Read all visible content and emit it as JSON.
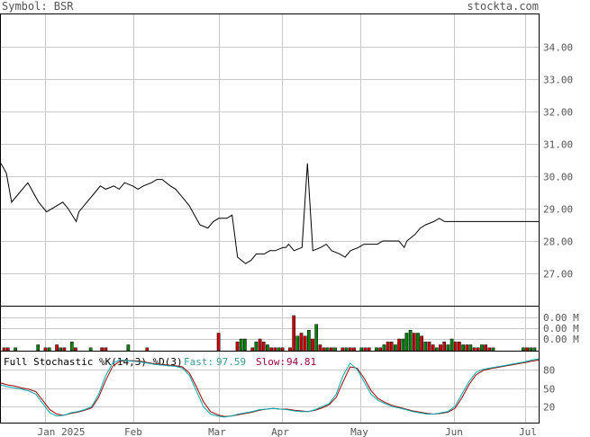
{
  "header": {
    "symbol_label": "Symbol: BSR",
    "site": "stockta.com"
  },
  "colors": {
    "frame": "#000000",
    "grid": "#c8c8c8",
    "price_line": "#000000",
    "volume_up": "#008000",
    "volume_down": "#cc0000",
    "fast_line": "#00aaaa",
    "slow_line": "#990000",
    "fast_label": "#3a9a9a",
    "slow_label": "#990044",
    "text": "#555555"
  },
  "chart_data": [
    {
      "type": "line",
      "panel": "price",
      "x_tick_labels": [
        "Jan 2025",
        "Feb",
        "Mar",
        "Apr",
        "May",
        "Jun",
        "Jul"
      ],
      "y_tick_labels": [
        "27.00",
        "28.00",
        "29.00",
        "30.00",
        "31.00",
        "32.00",
        "33.00",
        "34.00"
      ],
      "y_ticks": [
        27,
        28,
        29,
        30,
        31,
        32,
        33,
        34
      ],
      "ylim": [
        26,
        35
      ],
      "grid": true,
      "series": [
        {
          "x": [
            "2024-12-16",
            "2024-12-18",
            "2024-12-20",
            "2024-12-23",
            "2024-12-26",
            "2024-12-30",
            "2025-01-02",
            "2025-01-06",
            "2025-01-08",
            "2025-01-10",
            "2025-01-13",
            "2025-01-14",
            "2025-01-16",
            "2025-01-20",
            "2025-01-22",
            "2025-01-24",
            "2025-01-27",
            "2025-01-29",
            "2025-01-31",
            "2025-02-03",
            "2025-02-05",
            "2025-02-07",
            "2025-02-10",
            "2025-02-12",
            "2025-02-14",
            "2025-02-17",
            "2025-02-19",
            "2025-02-21",
            "2025-02-24",
            "2025-02-26",
            "2025-02-28",
            "2025-03-03",
            "2025-03-05",
            "2025-03-07",
            "2025-03-10",
            "2025-03-12",
            "2025-03-14",
            "2025-03-17",
            "2025-03-19",
            "2025-03-21",
            "2025-03-24",
            "2025-03-26",
            "2025-03-28",
            "2025-03-31",
            "2025-04-01",
            "2025-04-02",
            "2025-04-03",
            "2025-04-04",
            "2025-04-07",
            "2025-04-09",
            "2025-04-11",
            "2025-04-14",
            "2025-04-16",
            "2025-04-18",
            "2025-04-21",
            "2025-04-23",
            "2025-04-25",
            "2025-04-28",
            "2025-04-30",
            "2025-05-02",
            "2025-05-05",
            "2025-05-07",
            "2025-05-09",
            "2025-05-12",
            "2025-05-13",
            "2025-05-14",
            "2025-05-15",
            "2025-05-16",
            "2025-05-19",
            "2025-05-21",
            "2025-05-23",
            "2025-05-26",
            "2025-05-28",
            "2025-05-30",
            "2025-06-02",
            "2025-06-04",
            "2025-06-06",
            "2025-06-09",
            "2025-06-11",
            "2025-06-13",
            "2025-06-16",
            "2025-06-18",
            "2025-06-20",
            "2025-06-23",
            "2025-06-25",
            "2025-06-27",
            "2025-06-30",
            "2025-07-02",
            "2025-07-04"
          ],
          "y": [
            30.4,
            30.1,
            29.2,
            29.5,
            29.8,
            29.2,
            28.9,
            29.1,
            29.2,
            29.0,
            28.6,
            28.9,
            29.1,
            29.5,
            29.7,
            29.6,
            29.7,
            29.6,
            29.8,
            29.7,
            29.6,
            29.7,
            29.8,
            29.9,
            29.9,
            29.7,
            29.6,
            29.4,
            29.1,
            28.8,
            28.5,
            28.4,
            28.6,
            28.7,
            28.7,
            28.8,
            27.5,
            27.3,
            27.4,
            27.6,
            27.6,
            27.7,
            27.7,
            27.8,
            27.8,
            27.9,
            27.8,
            27.7,
            27.8,
            30.4,
            27.7,
            27.8,
            27.9,
            27.7,
            27.6,
            27.5,
            27.7,
            27.8,
            27.9,
            27.9,
            27.9,
            28.0,
            28.0,
            28.0,
            28.0,
            27.9,
            27.8,
            28.0,
            28.2,
            28.4,
            28.5,
            28.6,
            28.7,
            28.6,
            28.6,
            28.6,
            28.6,
            28.6,
            28.6,
            28.6,
            28.6,
            28.6,
            28.6,
            28.6,
            28.6,
            28.6,
            28.6,
            28.6,
            28.6
          ]
        }
      ]
    },
    {
      "type": "bar",
      "panel": "volume",
      "y_tick_labels": [
        "0.00 M",
        "0.00 M",
        "0.00 M"
      ],
      "series": [
        {
          "values": [
            1,
            1,
            0,
            1,
            0,
            0,
            0,
            0,
            0,
            2,
            0,
            1,
            1,
            0,
            2,
            1,
            1,
            0,
            3,
            1,
            0,
            0,
            0,
            1,
            0,
            0,
            1,
            1,
            0,
            0,
            0,
            0,
            0,
            2,
            0,
            0,
            0,
            0,
            1,
            0,
            0,
            0,
            0,
            0,
            0,
            0,
            0,
            0,
            0,
            0,
            0,
            0,
            0,
            0,
            0,
            0,
            0,
            6,
            0,
            0,
            0,
            0,
            3,
            4,
            4,
            0,
            1,
            3,
            4,
            3,
            2,
            1,
            1,
            1,
            1,
            0,
            1,
            12,
            5,
            6,
            5,
            7,
            4,
            9,
            2,
            1,
            1,
            1,
            1,
            0,
            1,
            1,
            1,
            1,
            0,
            1,
            1,
            1,
            0,
            1,
            1,
            2,
            3,
            3,
            2,
            4,
            4,
            6,
            7,
            6,
            6,
            5,
            3,
            3,
            2,
            1,
            2,
            3,
            2,
            4,
            3,
            3,
            2,
            2,
            2,
            1,
            1,
            2,
            2,
            1,
            1,
            0,
            0,
            0,
            0,
            0,
            0,
            0,
            1,
            1,
            1,
            1
          ],
          "up": [
            0,
            0,
            0,
            1,
            0,
            0,
            0,
            0,
            0,
            1,
            0,
            0,
            1,
            0,
            0,
            1,
            0,
            0,
            1,
            0,
            0,
            0,
            0,
            1,
            0,
            0,
            0,
            0,
            0,
            0,
            0,
            0,
            0,
            1,
            0,
            0,
            0,
            0,
            0,
            0,
            0,
            0,
            0,
            0,
            0,
            0,
            0,
            0,
            0,
            0,
            0,
            0,
            0,
            0,
            0,
            0,
            0,
            0,
            0,
            0,
            0,
            0,
            0,
            1,
            1,
            0,
            0,
            1,
            0,
            0,
            1,
            0,
            0,
            1,
            0,
            0,
            0,
            0,
            1,
            0,
            0,
            1,
            0,
            1,
            0,
            0,
            1,
            0,
            1,
            0,
            0,
            1,
            0,
            0,
            0,
            1,
            0,
            0,
            0,
            1,
            0,
            1,
            0,
            0,
            1,
            0,
            1,
            1,
            1,
            0,
            1,
            0,
            1,
            0,
            0,
            1,
            0,
            0,
            1,
            1,
            0,
            0,
            1,
            0,
            1,
            0,
            0,
            1,
            0,
            0,
            1,
            0,
            0,
            0,
            0,
            0,
            0,
            0,
            1,
            0,
            1,
            1
          ]
        }
      ]
    },
    {
      "type": "line",
      "panel": "stochastic",
      "title": "Full Stochastic %K(14,3) %D(3)",
      "fast_label": "Fast:",
      "fast_value": "97.59",
      "slow_label": "Slow:",
      "slow_value": "94.81",
      "y_tick_labels": [
        "80",
        "50",
        "20"
      ],
      "y_ticks": [
        80,
        50,
        20
      ],
      "ylim": [
        0,
        100
      ],
      "series": [
        {
          "name": "Fast",
          "values": [
            55,
            52,
            50,
            48,
            45,
            40,
            25,
            10,
            5,
            6,
            10,
            12,
            15,
            20,
            40,
            70,
            90,
            95,
            94,
            93,
            92,
            90,
            88,
            87,
            86,
            85,
            82,
            70,
            45,
            20,
            8,
            5,
            3,
            5,
            8,
            10,
            12,
            15,
            16,
            17,
            16,
            15,
            13,
            12,
            12,
            15,
            20,
            25,
            40,
            70,
            90,
            80,
            60,
            40,
            30,
            25,
            20,
            18,
            15,
            12,
            10,
            8,
            8,
            10,
            12,
            20,
            40,
            60,
            75,
            80,
            82,
            84,
            86,
            88,
            90,
            92,
            95,
            97
          ]
        },
        {
          "name": "Slow",
          "values": [
            58,
            55,
            53,
            50,
            48,
            44,
            30,
            15,
            8,
            6,
            9,
            11,
            14,
            18,
            35,
            62,
            85,
            93,
            94,
            94,
            93,
            91,
            89,
            88,
            87,
            86,
            84,
            74,
            52,
            28,
            12,
            7,
            4,
            5,
            7,
            9,
            11,
            14,
            16,
            17,
            16,
            16,
            14,
            13,
            12,
            14,
            18,
            23,
            35,
            60,
            84,
            82,
            66,
            46,
            33,
            27,
            22,
            19,
            16,
            13,
            11,
            9,
            8,
            9,
            11,
            17,
            34,
            55,
            71,
            78,
            81,
            83,
            85,
            87,
            89,
            91,
            93,
            95
          ]
        }
      ]
    }
  ]
}
